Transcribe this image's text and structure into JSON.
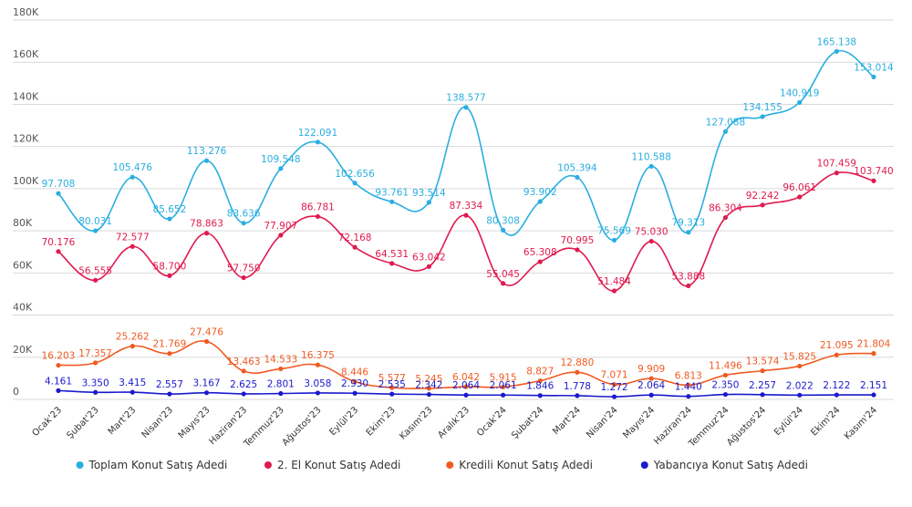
{
  "chart_data": {
    "type": "line",
    "ylim": [
      0,
      180000
    ],
    "y_ticks": [
      {
        "value": 0,
        "label": "0"
      },
      {
        "value": 20000,
        "label": "20K"
      },
      {
        "value": 40000,
        "label": "40K"
      },
      {
        "value": 60000,
        "label": "60K"
      },
      {
        "value": 80000,
        "label": "80K"
      },
      {
        "value": 100000,
        "label": "100K"
      },
      {
        "value": 120000,
        "label": "120K"
      },
      {
        "value": 140000,
        "label": "140K"
      },
      {
        "value": 160000,
        "label": "160K"
      },
      {
        "value": 180000,
        "label": "180K"
      }
    ],
    "grid": true,
    "smooth": true,
    "legend_position": "bottom-center",
    "categories": [
      "Ocak'23",
      "Şubat'23",
      "Mart'23",
      "Nisan'23",
      "Mayıs'23",
      "Haziran'23",
      "Temmuz'23",
      "Ağustos'23",
      "Eylül'23",
      "Ekim'23",
      "Kasım'23",
      "Aralık'23",
      "Ocak'24",
      "Şubat'24",
      "Mart'24",
      "Nisan'24",
      "Mayıs'24",
      "Haziran'24",
      "Temmuz'24",
      "Ağustos'24",
      "Eylül'24",
      "Ekim'24",
      "Kasım'24"
    ],
    "series": [
      {
        "name": "Toplam Konut Satış Adedi",
        "color": "#29aee1",
        "values": [
          97708,
          80031,
          105476,
          85652,
          113276,
          83636,
          109548,
          122091,
          102656,
          93761,
          93514,
          138577,
          80308,
          93902,
          105394,
          75569,
          110588,
          79313,
          127088,
          134155,
          140919,
          165138,
          153014
        ],
        "labels": [
          "97.708",
          "80.031",
          "105.476",
          "85.652",
          "113.276",
          "83.636",
          "109.548",
          "122.091",
          "102.656",
          "93.761",
          "93.514",
          "138.577",
          "80.308",
          "93.902",
          "105.394",
          "75.569",
          "110.588",
          "79.313",
          "127.088",
          "134.155",
          "140.919",
          "165.138",
          "153.014"
        ]
      },
      {
        "name": "2. El Konut Satış Adedi",
        "color": "#e01a4f",
        "values": [
          70176,
          56555,
          72577,
          58700,
          78863,
          57750,
          77907,
          86781,
          72168,
          64531,
          63042,
          87334,
          55045,
          65308,
          70995,
          51484,
          75030,
          53888,
          86304,
          92242,
          96061,
          107459,
          103740
        ],
        "labels": [
          "70.176",
          "56.555",
          "72.577",
          "58.700",
          "78.863",
          "57.750",
          "77.907",
          "86.781",
          "72.168",
          "64.531",
          "63.042",
          "87.334",
          "55.045",
          "65.308",
          "70.995",
          "51.484",
          "75.030",
          "53.888",
          "86.304",
          "92.242",
          "96.061",
          "107.459",
          "103.740"
        ]
      },
      {
        "name": "Kredili Konut Satış Adedi",
        "color": "#f05a22",
        "values": [
          16203,
          17357,
          25262,
          21769,
          27476,
          13463,
          14533,
          16375,
          8446,
          5577,
          5245,
          6042,
          5915,
          8827,
          12880,
          7071,
          9909,
          6813,
          11496,
          13574,
          15825,
          21095,
          21804
        ],
        "labels": [
          "16.203",
          "17.357",
          "25.262",
          "21.769",
          "27.476",
          "13.463",
          "14.533",
          "16.375",
          "8.446",
          "5.577",
          "5.245",
          "6.042",
          "5.915",
          "8.827",
          "12.880",
          "7.071",
          "9.909",
          "6.813",
          "11.496",
          "13.574",
          "15.825",
          "21.095",
          "21.804"
        ]
      },
      {
        "name": "Yabancıya Konut Satış Adedi",
        "color": "#1a1acc",
        "values": [
          4161,
          3350,
          3415,
          2557,
          3167,
          2625,
          2801,
          3058,
          2930,
          2535,
          2342,
          2064,
          2061,
          1846,
          1778,
          1272,
          2064,
          1440,
          2350,
          2257,
          2022,
          2122,
          2151
        ],
        "labels": [
          "4.161",
          "3.350",
          "3.415",
          "2.557",
          "3.167",
          "2.625",
          "2.801",
          "3.058",
          "2.930",
          "2.535",
          "2.342",
          "2.064",
          "2.061",
          "1.846",
          "1.778",
          "1.272",
          "2.064",
          "1.440",
          "2.350",
          "2.257",
          "2.022",
          "2.122",
          "2.151"
        ]
      }
    ]
  }
}
